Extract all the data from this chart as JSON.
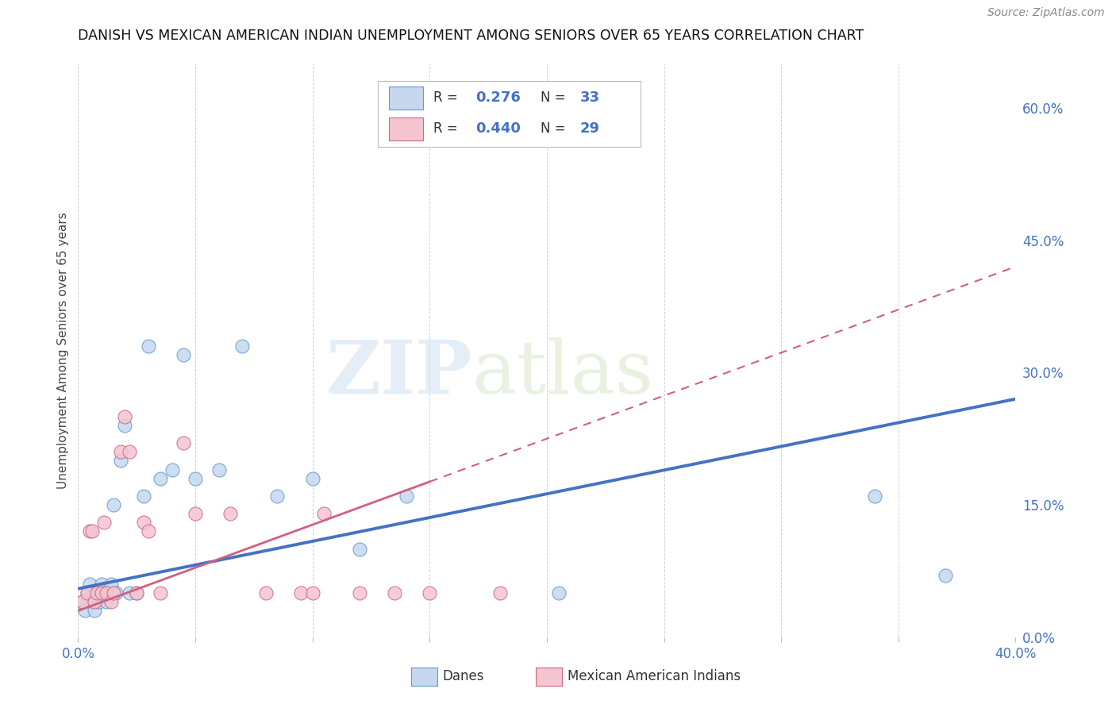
{
  "title": "DANISH VS MEXICAN AMERICAN INDIAN UNEMPLOYMENT AMONG SENIORS OVER 65 YEARS CORRELATION CHART",
  "source": "Source: ZipAtlas.com",
  "ylabel": "Unemployment Among Seniors over 65 years",
  "ytick_labels": [
    "0.0%",
    "15.0%",
    "30.0%",
    "45.0%",
    "60.0%"
  ],
  "ytick_values": [
    0,
    15,
    30,
    45,
    60
  ],
  "xlim": [
    0,
    40
  ],
  "ylim": [
    0,
    65
  ],
  "danes_R": "0.276",
  "danes_N": "33",
  "mex_R": "0.440",
  "mex_N": "29",
  "danes_fill_color": "#c5d8f0",
  "danes_edge_color": "#6699cc",
  "danes_line_color": "#4472c4",
  "mex_fill_color": "#f5c5d0",
  "mex_edge_color": "#cc6688",
  "mex_line_color": "#d06080",
  "label_color": "#4472c4",
  "title_color": "#111111",
  "grid_color": "#cccccc",
  "background_color": "#ffffff",
  "danes_x": [
    0.2,
    0.3,
    0.4,
    0.5,
    0.6,
    0.7,
    0.8,
    0.9,
    1.0,
    1.1,
    1.2,
    1.4,
    1.5,
    1.6,
    1.8,
    2.0,
    2.2,
    2.5,
    2.8,
    3.0,
    3.5,
    4.0,
    4.5,
    5.0,
    6.0,
    7.0,
    8.5,
    10.0,
    12.0,
    14.0,
    20.5,
    34.0,
    37.0
  ],
  "danes_y": [
    4,
    3,
    5,
    6,
    4,
    3,
    5,
    4,
    6,
    5,
    4,
    6,
    15,
    5,
    20,
    24,
    5,
    5,
    16,
    33,
    18,
    19,
    32,
    18,
    19,
    33,
    16,
    18,
    10,
    16,
    5,
    16,
    7
  ],
  "mex_x": [
    0.2,
    0.4,
    0.5,
    0.6,
    0.7,
    0.8,
    1.0,
    1.1,
    1.2,
    1.4,
    1.5,
    1.8,
    2.0,
    2.2,
    2.5,
    2.8,
    3.0,
    3.5,
    4.5,
    5.0,
    6.5,
    8.0,
    9.5,
    10.0,
    10.5,
    12.0,
    13.5,
    15.0,
    18.0
  ],
  "mex_y": [
    4,
    5,
    12,
    12,
    4,
    5,
    5,
    13,
    5,
    4,
    5,
    21,
    25,
    21,
    5,
    13,
    12,
    5,
    22,
    14,
    14,
    5,
    5,
    5,
    14,
    5,
    5,
    5,
    5
  ]
}
